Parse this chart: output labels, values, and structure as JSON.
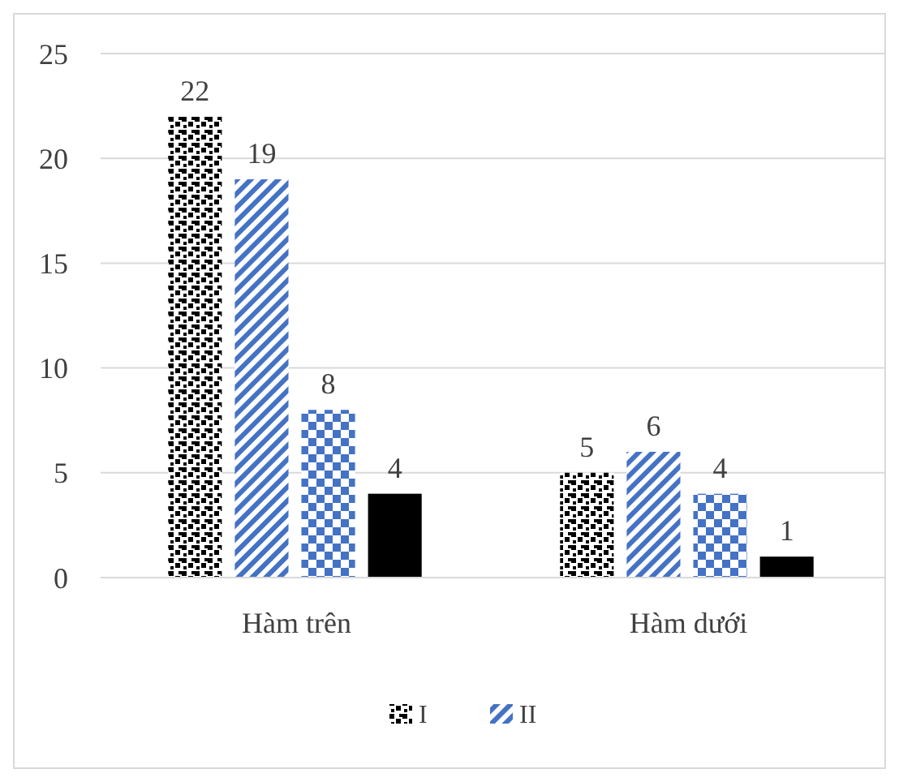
{
  "chart_data": {
    "type": "bar",
    "categories": [
      "Hàm trên",
      "Hàm dưới"
    ],
    "series": [
      {
        "name": "I",
        "color": "#000000",
        "values": [
          22,
          5
        ]
      },
      {
        "name": "II",
        "color": "#4472c4",
        "values": [
          19,
          6
        ]
      },
      {
        "color": "#4472c4",
        "values": [
          8,
          4
        ]
      },
      {
        "color": "#000000",
        "values": [
          4,
          1
        ]
      }
    ],
    "ylim": [
      0,
      25
    ],
    "yticks": [
      0,
      5,
      10,
      15,
      20,
      25
    ],
    "grid": "y",
    "data_labels": true,
    "legend": "bottom"
  }
}
